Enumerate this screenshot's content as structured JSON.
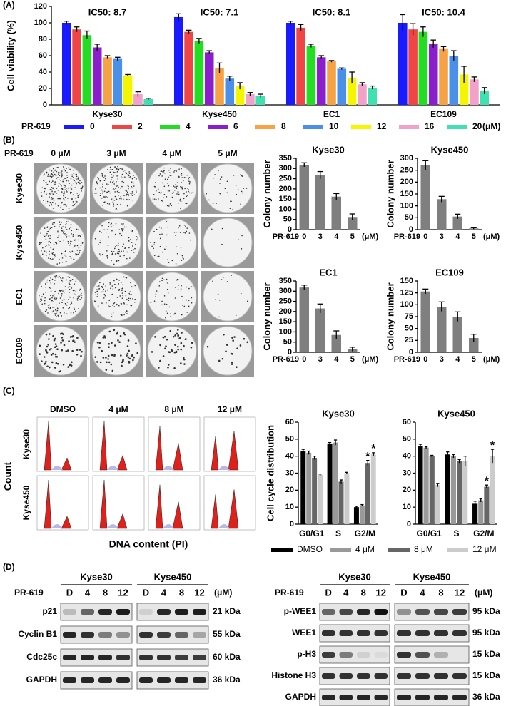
{
  "panel_labels": [
    "(A)",
    "(B)",
    "(C)",
    "(D)"
  ],
  "chart_data": [
    {
      "type": "bar",
      "ylabel": "Cell viability (%)",
      "categories": [
        "Kyse30",
        "Kyse450",
        "EC1",
        "EC109"
      ],
      "annotations": [
        "IC50: 8.7",
        "IC50: 7.1",
        "IC50: 8.1",
        "IC50: 10.4"
      ],
      "legend_title": "PR-619",
      "legend_unit": "(μM)",
      "ylim": [
        0,
        120
      ],
      "yticks": [
        0,
        20,
        40,
        60,
        80,
        100,
        120
      ],
      "series": [
        {
          "name": "0",
          "color": "#1a1aff",
          "values": [
            100,
            107,
            100,
            100
          ],
          "errors": [
            2,
            4,
            2,
            10
          ]
        },
        {
          "name": "2",
          "color": "#f04545",
          "values": [
            92,
            89,
            94,
            92
          ],
          "errors": [
            3,
            2,
            4,
            7
          ]
        },
        {
          "name": "4",
          "color": "#22dd22",
          "values": [
            85,
            78,
            72,
            89
          ],
          "errors": [
            5,
            3,
            2,
            6
          ]
        },
        {
          "name": "6",
          "color": "#8a1ecc",
          "values": [
            70,
            64,
            58,
            74
          ],
          "errors": [
            4,
            2,
            2,
            5
          ]
        },
        {
          "name": "8",
          "color": "#f7a245",
          "values": [
            58,
            45,
            53,
            68
          ],
          "errors": [
            2,
            6,
            1,
            3
          ]
        },
        {
          "name": "10",
          "color": "#4a90e8",
          "values": [
            56,
            32,
            44,
            60
          ],
          "errors": [
            2,
            3,
            1,
            6
          ]
        },
        {
          "name": "12",
          "color": "#f5f500",
          "values": [
            36,
            23,
            33,
            37
          ],
          "errors": [
            1,
            4,
            7,
            10
          ]
        },
        {
          "name": "16",
          "color": "#f2a2c8",
          "values": [
            13,
            13,
            25,
            31
          ],
          "errors": [
            3,
            2,
            2,
            3
          ]
        },
        {
          "name": "20",
          "color": "#40e0b0",
          "values": [
            7,
            11,
            21,
            17
          ],
          "errors": [
            1,
            2,
            2,
            4
          ]
        }
      ]
    },
    {
      "type": "bar",
      "title": "Kyse30",
      "ylabel": "Colony number",
      "xlabel": "PR-619",
      "x_unit": "(μM)",
      "categories": [
        "0",
        "3",
        "4",
        "5"
      ],
      "values": [
        318,
        267,
        162,
        62
      ],
      "errors": [
        10,
        18,
        15,
        15
      ],
      "color": "#7f7f7f",
      "ylim": [
        0,
        350
      ],
      "yticks": [
        0,
        50,
        100,
        150,
        200,
        250,
        300,
        350
      ]
    },
    {
      "type": "bar",
      "title": "Kyse450",
      "ylabel": "Colony number",
      "xlabel": "PR-619",
      "x_unit": "(μM)",
      "categories": [
        "0",
        "3",
        "4",
        "5"
      ],
      "values": [
        270,
        128,
        55,
        5
      ],
      "errors": [
        20,
        12,
        10,
        3
      ],
      "color": "#7f7f7f",
      "ylim": [
        0,
        300
      ],
      "yticks": [
        0,
        50,
        100,
        150,
        200,
        250,
        300
      ]
    },
    {
      "type": "bar",
      "title": "EC1",
      "ylabel": "Colony number",
      "xlabel": "PR-619",
      "x_unit": "(μM)",
      "categories": [
        "0",
        "3",
        "4",
        "5"
      ],
      "values": [
        318,
        215,
        85,
        15
      ],
      "errors": [
        12,
        22,
        20,
        10
      ],
      "color": "#7f7f7f",
      "ylim": [
        0,
        350
      ],
      "yticks": [
        0,
        50,
        100,
        150,
        200,
        250,
        300,
        350
      ]
    },
    {
      "type": "bar",
      "title": "EC109",
      "ylabel": "Colony number",
      "xlabel": "PR-619",
      "x_unit": "(μM)",
      "categories": [
        "0",
        "3",
        "4",
        "5"
      ],
      "values": [
        128,
        96,
        75,
        30
      ],
      "errors": [
        5,
        10,
        10,
        8
      ],
      "color": "#7f7f7f",
      "ylim": [
        0,
        150
      ],
      "yticks": [
        0,
        25,
        50,
        75,
        100,
        125,
        150
      ]
    },
    {
      "type": "bar",
      "title": "Kyse30",
      "ylabel": "Cell cycle distribution",
      "categories": [
        "G0/G1",
        "S",
        "G2/M"
      ],
      "ylim": [
        0,
        60
      ],
      "yticks": [
        0,
        10,
        20,
        30,
        40,
        50,
        60
      ],
      "series": [
        {
          "name": "DMSO",
          "color": "#000000",
          "values": [
            43,
            47,
            10
          ],
          "errors": [
            1,
            1,
            0.5
          ]
        },
        {
          "name": "4 μM",
          "color": "#999999",
          "values": [
            42,
            48,
            11
          ],
          "errors": [
            1,
            1.5,
            0.5
          ]
        },
        {
          "name": "8 μM",
          "color": "#666666",
          "values": [
            39,
            25,
            36
          ],
          "errors": [
            1,
            1,
            1.5
          ],
          "significance": [
            null,
            null,
            "*"
          ]
        },
        {
          "name": "12 μM",
          "color": "#cccccc",
          "values": [
            29,
            30,
            41
          ],
          "errors": [
            0.5,
            0.5,
            1
          ],
          "significance": [
            null,
            null,
            "*"
          ]
        }
      ]
    },
    {
      "type": "bar",
      "title": "Kyse450",
      "categories": [
        "G0/G1",
        "S",
        "G2/M"
      ],
      "ylim": [
        0,
        60
      ],
      "yticks": [
        0,
        10,
        20,
        30,
        40,
        50,
        60
      ],
      "series": [
        {
          "color": "#000000",
          "values": [
            46,
            41,
            12
          ],
          "errors": [
            1,
            1.5,
            1.5
          ]
        },
        {
          "color": "#999999",
          "values": [
            45,
            40,
            14
          ],
          "errors": [
            0.5,
            1,
            1
          ]
        },
        {
          "color": "#666666",
          "values": [
            40,
            37,
            22
          ],
          "errors": [
            0.5,
            1,
            1
          ],
          "significance": [
            null,
            null,
            "*"
          ]
        },
        {
          "color": "#cccccc",
          "values": [
            23,
            37,
            40
          ],
          "errors": [
            1,
            3,
            4
          ],
          "significance": [
            null,
            null,
            "*"
          ]
        }
      ]
    }
  ],
  "colony_assay": {
    "treatment": "PR-619",
    "columns": [
      "0 μM",
      "3 μM",
      "4 μM",
      "5 μM"
    ],
    "rows": [
      "Kyse30",
      "Kyse450",
      "EC1",
      "EC109"
    ]
  },
  "flow_cytometry": {
    "columns": [
      "DMSO",
      "4 μM",
      "8 μM",
      "12 μM"
    ],
    "rows": [
      "Kyse30",
      "Kyse450"
    ],
    "ylabel": "Count",
    "xlabel": "DNA content (PI)"
  },
  "western_blots": [
    {
      "cell_lines": [
        "Kyse30",
        "Kyse450"
      ],
      "treatment": "PR-619",
      "doses": [
        "D",
        "4",
        "8",
        "12"
      ],
      "unit": "(μM)",
      "proteins": [
        {
          "name": "p21",
          "size": "21 kDa"
        },
        {
          "name": "Cyclin B1",
          "size": "55 kDa"
        },
        {
          "name": "Cdc25c",
          "size": "60 kDa"
        },
        {
          "name": "GAPDH",
          "size": "36 kDa"
        }
      ]
    },
    {
      "cell_lines": [
        "Kyse30",
        "Kyse450"
      ],
      "treatment": "PR-619",
      "doses": [
        "D",
        "4",
        "8",
        "12"
      ],
      "unit": "(μM)",
      "proteins": [
        {
          "name": "p-WEE1",
          "size": "95 kDa"
        },
        {
          "name": "WEE1",
          "size": "95 kDa"
        },
        {
          "name": "p-H3",
          "size": "15 kDa"
        },
        {
          "name": "Histone H3",
          "size": "15 kDa"
        },
        {
          "name": "GAPDH",
          "size": "36 kDa"
        }
      ]
    }
  ]
}
